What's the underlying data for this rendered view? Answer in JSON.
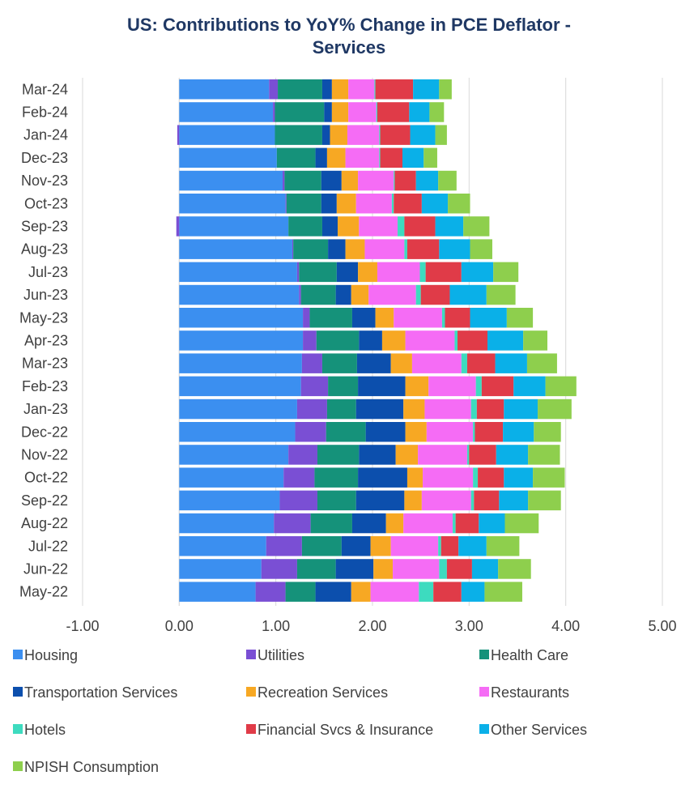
{
  "chart_data": {
    "type": "bar",
    "orientation": "horizontal",
    "stacked": true,
    "title_line1": "US: Contributions to YoY% Change in PCE Deflator -",
    "title_line2": "Services",
    "xlim": [
      -1.0,
      5.0
    ],
    "x_ticks": [
      "-1.00",
      "0.00",
      "1.00",
      "2.00",
      "3.00",
      "4.00",
      "5.00"
    ],
    "x_tick_values": [
      -1,
      0,
      1,
      2,
      3,
      4,
      5
    ],
    "grid": "vertical",
    "legend_position": "bottom",
    "categories": [
      "Mar-24",
      "Feb-24",
      "Jan-24",
      "Dec-23",
      "Nov-23",
      "Oct-23",
      "Sep-23",
      "Aug-23",
      "Jul-23",
      "Jun-23",
      "May-23",
      "Apr-23",
      "Mar-23",
      "Feb-23",
      "Jan-23",
      "Dec-22",
      "Nov-22",
      "Oct-22",
      "Sep-22",
      "Aug-22",
      "Jul-22",
      "Jun-22",
      "May-22"
    ],
    "series": [
      {
        "name": "Housing",
        "color": "#3b8ff0",
        "values": [
          0.93,
          0.97,
          0.99,
          1.01,
          1.07,
          1.1,
          1.13,
          1.17,
          1.22,
          1.24,
          1.28,
          1.28,
          1.27,
          1.26,
          1.22,
          1.2,
          1.13,
          1.08,
          1.04,
          0.98,
          0.9,
          0.85,
          0.79
        ]
      },
      {
        "name": "Utilities",
        "color": "#7a4fd4",
        "values": [
          0.09,
          0.02,
          -0.02,
          0.0,
          0.02,
          0.01,
          -0.03,
          0.01,
          0.02,
          0.02,
          0.07,
          0.14,
          0.21,
          0.28,
          0.31,
          0.32,
          0.3,
          0.32,
          0.39,
          0.38,
          0.37,
          0.37,
          0.31
        ]
      },
      {
        "name": "Health Care",
        "color": "#15927a",
        "values": [
          0.46,
          0.51,
          0.49,
          0.4,
          0.38,
          0.36,
          0.35,
          0.36,
          0.39,
          0.36,
          0.44,
          0.44,
          0.36,
          0.31,
          0.3,
          0.41,
          0.43,
          0.45,
          0.4,
          0.43,
          0.41,
          0.4,
          0.31
        ]
      },
      {
        "name": "Transportation Services",
        "color": "#0c4fad",
        "values": [
          0.1,
          0.08,
          0.08,
          0.12,
          0.21,
          0.16,
          0.16,
          0.18,
          0.22,
          0.16,
          0.24,
          0.24,
          0.35,
          0.49,
          0.49,
          0.41,
          0.38,
          0.51,
          0.5,
          0.35,
          0.3,
          0.39,
          0.37
        ]
      },
      {
        "name": "Recreation Services",
        "color": "#f7a823",
        "values": [
          0.17,
          0.17,
          0.18,
          0.19,
          0.17,
          0.2,
          0.22,
          0.2,
          0.2,
          0.18,
          0.19,
          0.24,
          0.22,
          0.24,
          0.22,
          0.22,
          0.23,
          0.16,
          0.18,
          0.18,
          0.21,
          0.2,
          0.2
        ]
      },
      {
        "name": "Restaurants",
        "color": "#f56cf5",
        "values": [
          0.27,
          0.29,
          0.33,
          0.35,
          0.37,
          0.37,
          0.4,
          0.41,
          0.44,
          0.49,
          0.5,
          0.51,
          0.51,
          0.49,
          0.48,
          0.48,
          0.51,
          0.52,
          0.51,
          0.51,
          0.49,
          0.48,
          0.5
        ]
      },
      {
        "name": "Hotels",
        "color": "#3ddbbf",
        "values": [
          0.01,
          0.01,
          0.01,
          0.01,
          0.01,
          0.02,
          0.07,
          0.03,
          0.06,
          0.05,
          0.03,
          0.03,
          0.06,
          0.06,
          0.06,
          0.02,
          0.02,
          0.05,
          0.03,
          0.03,
          0.03,
          0.08,
          0.15
        ]
      },
      {
        "name": "Financial Svcs & Insurance",
        "color": "#e03b48",
        "values": [
          0.39,
          0.33,
          0.31,
          0.23,
          0.22,
          0.29,
          0.32,
          0.33,
          0.37,
          0.3,
          0.26,
          0.31,
          0.29,
          0.33,
          0.28,
          0.29,
          0.28,
          0.27,
          0.26,
          0.24,
          0.18,
          0.26,
          0.29
        ]
      },
      {
        "name": "Other Services",
        "color": "#0ab0e8",
        "values": [
          0.27,
          0.21,
          0.26,
          0.22,
          0.23,
          0.27,
          0.29,
          0.32,
          0.33,
          0.38,
          0.38,
          0.37,
          0.33,
          0.33,
          0.35,
          0.32,
          0.33,
          0.3,
          0.3,
          0.27,
          0.29,
          0.27,
          0.24
        ]
      },
      {
        "name": "NPISH Consumption",
        "color": "#8ecf4d",
        "values": [
          0.13,
          0.15,
          0.12,
          0.14,
          0.19,
          0.23,
          0.27,
          0.23,
          0.26,
          0.3,
          0.27,
          0.25,
          0.31,
          0.32,
          0.35,
          0.28,
          0.33,
          0.33,
          0.34,
          0.35,
          0.34,
          0.34,
          0.39
        ]
      }
    ]
  }
}
